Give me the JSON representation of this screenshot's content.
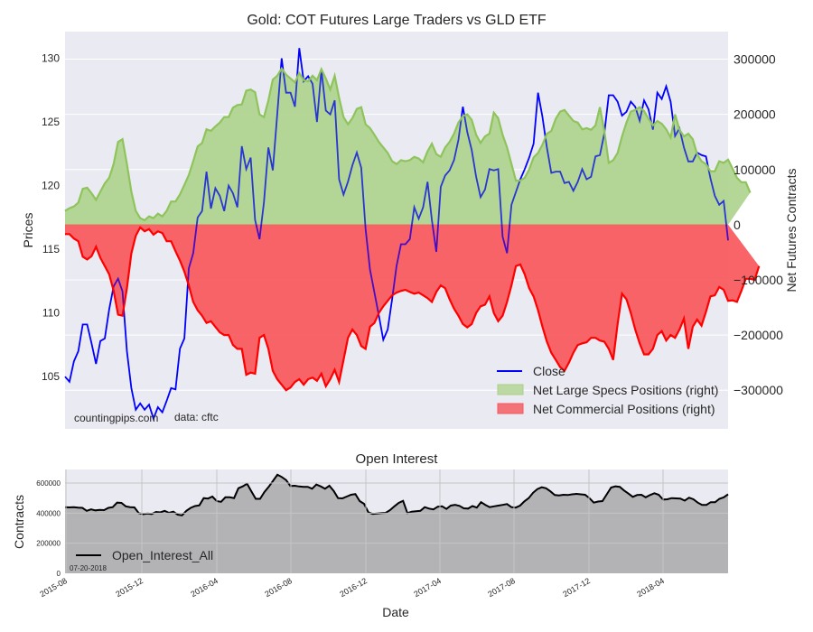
{
  "chart_data": [
    {
      "type": "line+area",
      "title": "Gold: COT Futures Large Traders vs GLD ETF",
      "ylabel_left": "Prices",
      "ylabel_right": "Net Futures Contracts",
      "ylim_left": [
        100.9,
        132.1
      ],
      "ylim_right": [
        -370000,
        350000
      ],
      "yticks_left": [
        "105",
        "110",
        "115",
        "120",
        "125",
        "130"
      ],
      "yticks_right": [
        "300000",
        "200000",
        "100000",
        "0",
        "−100000",
        "−200000",
        "−300000"
      ],
      "yticks_right_values": [
        300000,
        200000,
        100000,
        0,
        -100000,
        -200000,
        -300000
      ],
      "yticks_left_values": [
        105,
        110,
        115,
        120,
        125,
        130
      ],
      "grid": true,
      "legend_position": "lower-right",
      "annotations": [
        "countingpips.com",
        "data: cftc"
      ],
      "x_start": "2015-07-28",
      "x_step": "weekly",
      "series": [
        {
          "name": "Close",
          "axis": "left",
          "color": "#0000ff",
          "values": [
            105.0,
            104.6,
            106.2,
            107.0,
            109.1,
            109.1,
            107.6,
            106.0,
            107.8,
            108.0,
            110.3,
            112.1,
            112.7,
            111.7,
            107.0,
            104.1,
            102.4,
            102.9,
            102.4,
            102.8,
            101.7,
            102.6,
            102.2,
            103.1,
            104.1,
            104.0,
            107.2,
            108.0,
            113.5,
            114.7,
            117.5,
            118.0,
            121.1,
            118.2,
            119.8,
            119.2,
            118.0,
            120.0,
            119.4,
            118.3,
            123.1,
            121.3,
            122.2,
            117.3,
            115.8,
            118.7,
            123.0,
            121.2,
            125.6,
            130.0,
            127.3,
            127.3,
            126.2,
            130.8,
            128.2,
            128.6,
            128.0,
            125.0,
            129.1,
            125.9,
            125.6,
            126.7,
            120.5,
            119.3,
            120.3,
            121.6,
            122.6,
            121.4,
            116.6,
            113.4,
            111.6,
            109.8,
            107.9,
            108.7,
            111.1,
            113.7,
            115.4,
            115.4,
            115.8,
            118.3,
            117.4,
            118.3,
            120.3,
            117.3,
            114.8,
            119.9,
            120.8,
            121.2,
            122.0,
            123.6,
            126.2,
            124.2,
            122.8,
            120.7,
            119.1,
            119.7,
            121.3,
            121.2,
            121.3,
            116.0,
            114.7,
            118.5,
            119.5,
            120.5,
            121.3,
            122.2,
            123.3,
            127.3,
            125.4,
            123.0,
            121.0,
            121.1,
            121.1,
            120.2,
            120.3,
            119.6,
            120.3,
            121.3,
            120.5,
            120.7,
            122.3,
            122.4,
            124.1,
            127.1,
            127.1,
            126.6,
            125.5,
            125.8,
            126.6,
            126.2,
            125.1,
            126.7,
            126.0,
            124.4,
            127.3,
            126.8,
            127.8,
            126.6,
            123.9,
            124.5,
            123.0,
            121.9,
            121.9,
            122.6,
            122.4,
            122.3,
            120.6,
            119.2,
            118.5,
            118.8,
            115.7
          ]
        },
        {
          "name": "Net Large Specs Positions (right)",
          "axis": "right",
          "color": "#8fc45c",
          "fill": "#bcd9a3",
          "values": [
            25000,
            30000,
            33000,
            40000,
            65000,
            67000,
            57000,
            45000,
            60000,
            75000,
            85000,
            110000,
            150000,
            155000,
            110000,
            60000,
            25000,
            12000,
            8000,
            15000,
            12000,
            20000,
            15000,
            25000,
            42000,
            42000,
            55000,
            72000,
            90000,
            115000,
            142000,
            148000,
            173000,
            170000,
            178000,
            185000,
            195000,
            195000,
            212000,
            217000,
            218000,
            243000,
            245000,
            240000,
            200000,
            195000,
            225000,
            263000,
            270000,
            283000,
            272000,
            265000,
            258000,
            275000,
            262000,
            260000,
            270000,
            262000,
            282000,
            265000,
            245000,
            270000,
            230000,
            195000,
            182000,
            193000,
            210000,
            213000,
            182000,
            175000,
            163000,
            150000,
            140000,
            130000,
            115000,
            110000,
            117000,
            115000,
            117000,
            123000,
            120000,
            113000,
            133000,
            147000,
            128000,
            123000,
            140000,
            150000,
            165000,
            185000,
            197000,
            200000,
            190000,
            163000,
            148000,
            160000,
            165000,
            203000,
            193000,
            163000,
            140000,
            110000,
            80000,
            80000,
            85000,
            100000,
            122000,
            130000,
            145000,
            165000,
            170000,
            192000,
            205000,
            208000,
            198000,
            188000,
            185000,
            173000,
            175000,
            172000,
            180000,
            213000,
            170000,
            112000,
            117000,
            130000,
            160000,
            185000,
            205000,
            208000,
            213000,
            206000,
            192000,
            180000,
            188000,
            183000,
            173000,
            158000,
            200000,
            172000,
            160000,
            165000,
            155000,
            128000,
            115000,
            110000,
            97000,
            97000,
            115000,
            112000,
            118000,
            102000,
            85000,
            77000,
            77000,
            58000
          ]
        },
        {
          "name": "Net Commercial Positions (right)",
          "axis": "right",
          "color": "#ff0000",
          "fill": "#f47378",
          "values": [
            -17000,
            -17000,
            -25000,
            -30000,
            -58000,
            -63000,
            -57000,
            -40000,
            -60000,
            -75000,
            -90000,
            -120000,
            -163000,
            -165000,
            -115000,
            -52000,
            -20000,
            -5000,
            -12000,
            -8000,
            -18000,
            -12000,
            -15000,
            -30000,
            -30000,
            -48000,
            -65000,
            -85000,
            -110000,
            -140000,
            -155000,
            -165000,
            -178000,
            -175000,
            -185000,
            -195000,
            -200000,
            -200000,
            -218000,
            -225000,
            -225000,
            -272000,
            -268000,
            -270000,
            -205000,
            -200000,
            -225000,
            -265000,
            -280000,
            -290000,
            -300000,
            -295000,
            -285000,
            -280000,
            -290000,
            -280000,
            -277000,
            -283000,
            -270000,
            -293000,
            -280000,
            -263000,
            -285000,
            -245000,
            -205000,
            -190000,
            -200000,
            -220000,
            -225000,
            -185000,
            -178000,
            -160000,
            -148000,
            -138000,
            -128000,
            -123000,
            -120000,
            -118000,
            -122000,
            -125000,
            -123000,
            -128000,
            -133000,
            -140000,
            -122000,
            -110000,
            -115000,
            -135000,
            -152000,
            -165000,
            -180000,
            -186000,
            -180000,
            -160000,
            -148000,
            -145000,
            -130000,
            -160000,
            -175000,
            -165000,
            -140000,
            -110000,
            -75000,
            -72000,
            -90000,
            -115000,
            -130000,
            -155000,
            -185000,
            -212000,
            -232000,
            -245000,
            -258000,
            -265000,
            -250000,
            -232000,
            -218000,
            -215000,
            -213000,
            -205000,
            -205000,
            -210000,
            -212000,
            -225000,
            -245000,
            -180000,
            -125000,
            -135000,
            -160000,
            -190000,
            -215000,
            -235000,
            -235000,
            -225000,
            -200000,
            -193000,
            -210000,
            -200000,
            -205000,
            -190000,
            -170000,
            -225000,
            -185000,
            -172000,
            -183000,
            -158000,
            -130000,
            -128000,
            -113000,
            -118000,
            -138000,
            -137000,
            -140000,
            -120000,
            -98000,
            -98000,
            -100000,
            -75000
          ]
        }
      ]
    },
    {
      "type": "area",
      "title": "Open Interest",
      "xlabel": "Date",
      "ylabel": "Contracts",
      "ylim": [
        0,
        690000
      ],
      "yticks": [
        "0",
        "200000",
        "400000",
        "600000"
      ],
      "yticks_values": [
        0,
        200000,
        400000,
        600000
      ],
      "xticks": [
        "2015-08",
        "2015-12",
        "2016-04",
        "2016-08",
        "2016-12",
        "2017-04",
        "2017-08",
        "2017-12",
        "2018-04"
      ],
      "grid": true,
      "legend_position": "lower-left",
      "annotations": [
        "07-20-2018"
      ],
      "x_start": "2015-07-28",
      "x_step": "weekly",
      "series": [
        {
          "name": "Open_Interest_All",
          "color": "#000000",
          "fill": "#b3b3b6",
          "values": [
            440000,
            438000,
            440000,
            437000,
            435000,
            415000,
            425000,
            418000,
            422000,
            420000,
            435000,
            440000,
            470000,
            468000,
            445000,
            440000,
            438000,
            400000,
            393000,
            397000,
            394000,
            408000,
            405000,
            415000,
            402000,
            410000,
            390000,
            385000,
            415000,
            435000,
            447000,
            452000,
            500000,
            497000,
            510000,
            480000,
            475000,
            505000,
            505000,
            500000,
            565000,
            578000,
            595000,
            545000,
            495000,
            495000,
            540000,
            575000,
            615000,
            655000,
            640000,
            620000,
            580000,
            582000,
            577000,
            575000,
            575000,
            562000,
            590000,
            578000,
            562000,
            582000,
            548000,
            500000,
            498000,
            510000,
            522000,
            527000,
            480000,
            462000,
            405000,
            395000,
            398000,
            400000,
            402000,
            420000,
            445000,
            468000,
            482000,
            400000,
            410000,
            412000,
            415000,
            440000,
            430000,
            425000,
            443000,
            445000,
            428000,
            450000,
            455000,
            448000,
            432000,
            430000,
            447000,
            437000,
            473000,
            455000,
            440000,
            445000,
            450000,
            455000,
            460000,
            440000,
            437000,
            450000,
            478000,
            500000,
            535000,
            560000,
            572000,
            565000,
            545000,
            520000,
            518000,
            522000,
            520000,
            525000,
            528000,
            525000,
            522000,
            500000,
            470000,
            477000,
            480000,
            525000,
            570000,
            578000,
            575000,
            550000,
            530000,
            508000,
            520000,
            522000,
            505000,
            520000,
            532000,
            522000,
            490000,
            492000,
            500000,
            498000,
            497000,
            483000,
            503000,
            492000,
            470000,
            455000,
            455000,
            473000,
            472000,
            495000,
            505000,
            525000
          ]
        }
      ]
    }
  ]
}
